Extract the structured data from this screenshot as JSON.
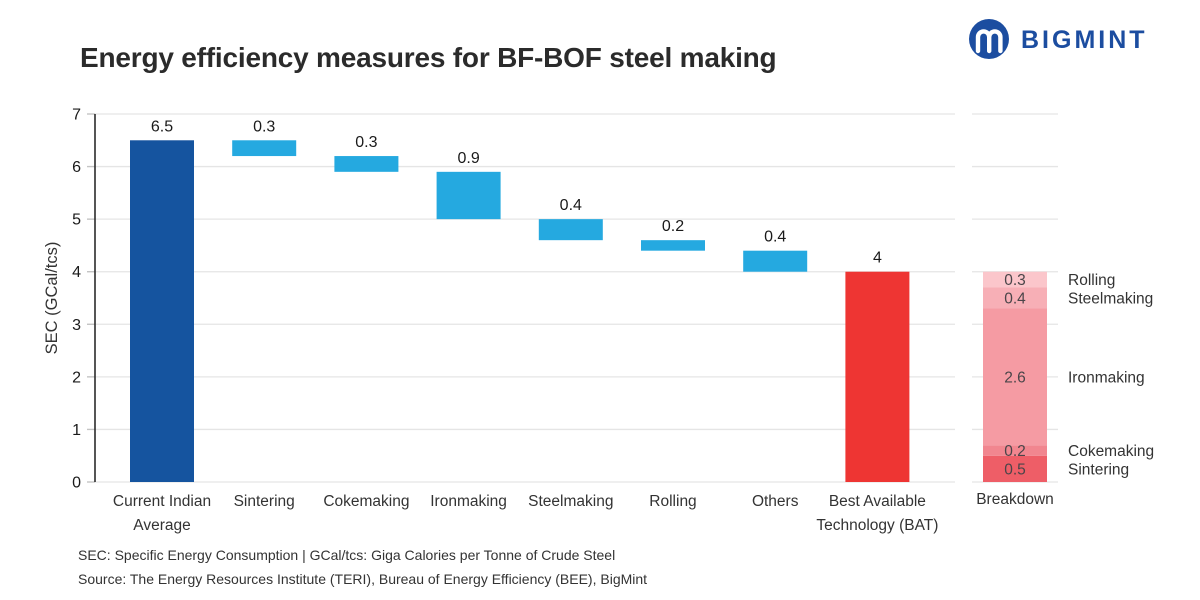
{
  "header": {
    "title": "Energy efficiency measures for BF-BOF steel making",
    "brand": "BIGMINT"
  },
  "chart_data": {
    "type": "bar",
    "subtype": "waterfall-with-stacked-breakdown",
    "title": "Energy efficiency measures for BF-BOF steel making",
    "ylabel": "SEC (GCal/tcs)",
    "ylim": [
      0,
      7
    ],
    "yticks": [
      0,
      1,
      2,
      3,
      4,
      5,
      6,
      7
    ],
    "grid": true,
    "waterfall": {
      "bars": [
        {
          "category_lines": [
            "Current Indian",
            "Average"
          ],
          "value": 6.5,
          "label": "6.5",
          "kind": "total",
          "color": "#15549f"
        },
        {
          "category_lines": [
            "Sintering"
          ],
          "value": 0.3,
          "label": "0.3",
          "kind": "decrease",
          "color": "#25a9e0"
        },
        {
          "category_lines": [
            "Cokemaking"
          ],
          "value": 0.3,
          "label": "0.3",
          "kind": "decrease",
          "color": "#25a9e0"
        },
        {
          "category_lines": [
            "Ironmaking"
          ],
          "value": 0.9,
          "label": "0.9",
          "kind": "decrease",
          "color": "#25a9e0"
        },
        {
          "category_lines": [
            "Steelmaking"
          ],
          "value": 0.4,
          "label": "0.4",
          "kind": "decrease",
          "color": "#25a9e0"
        },
        {
          "category_lines": [
            "Rolling"
          ],
          "value": 0.2,
          "label": "0.2",
          "kind": "decrease",
          "color": "#25a9e0"
        },
        {
          "category_lines": [
            "Others"
          ],
          "value": 0.4,
          "label": "0.4",
          "kind": "decrease",
          "color": "#25a9e0"
        },
        {
          "category_lines": [
            "Best Available",
            "Technology (BAT)"
          ],
          "value": 4,
          "label": "4",
          "kind": "total",
          "color": "#ee3533"
        }
      ]
    },
    "breakdown": {
      "category_lines": [
        "Breakdown"
      ],
      "total": 4,
      "segments_bottom_to_top": [
        {
          "name": "Sintering",
          "value": 0.5,
          "label": "0.5",
          "color": "#ee5e67"
        },
        {
          "name": "Cokemaking",
          "value": 0.2,
          "label": "0.2",
          "color": "#f1868f"
        },
        {
          "name": "Ironmaking",
          "value": 2.6,
          "label": "2.6",
          "color": "#f59ba3"
        },
        {
          "name": "Steelmaking",
          "value": 0.4,
          "label": "0.4",
          "color": "#f7afb6"
        },
        {
          "name": "Rolling",
          "value": 0.3,
          "label": "0.3",
          "color": "#fbc6cb"
        }
      ]
    }
  },
  "colors": {
    "grid": "#e5e5e5",
    "tick": "#c4c4c4",
    "axis": "#2b2b2b",
    "text": "#333333",
    "value_label": "#1a1a1a",
    "segment_label": "#4a4549",
    "brand_blue": "#1c4da0"
  },
  "footer": {
    "line1": "SEC: Specific Energy Consumption | GCal/tcs: Giga Calories per Tonne of Crude Steel",
    "line2": "Source: The Energy Resources Institute (TERI), Bureau of Energy Efficiency (BEE), BigMint"
  }
}
